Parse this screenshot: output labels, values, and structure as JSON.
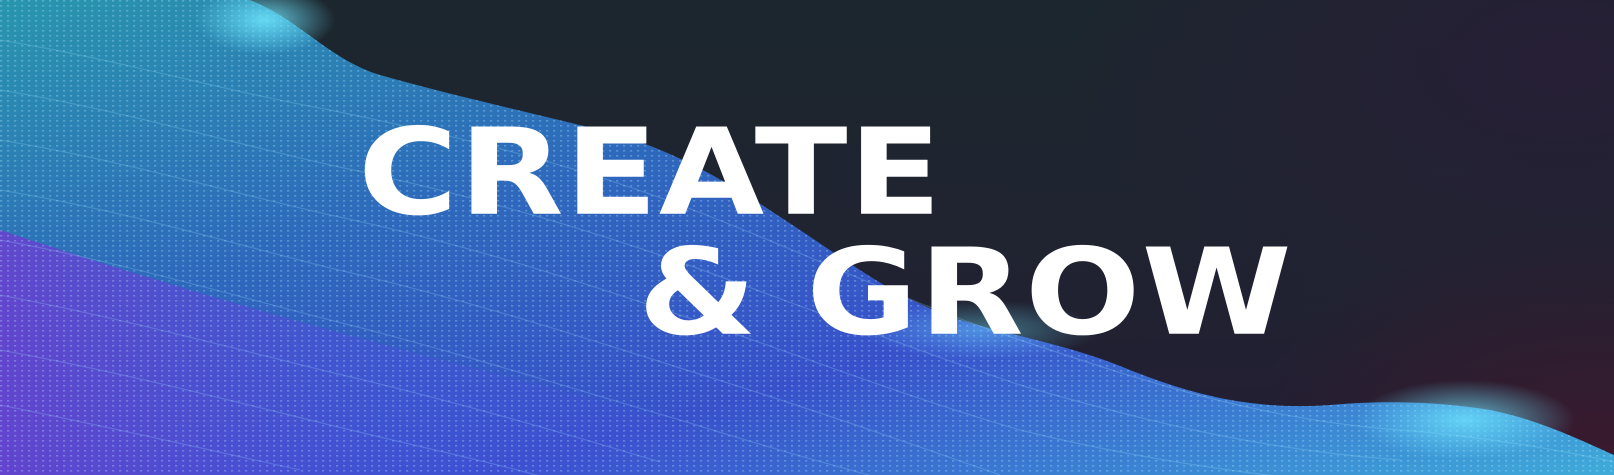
{
  "banner": {
    "headline_line_1": "CREATE",
    "headline_line_2": "& GROW"
  },
  "colors": {
    "background_dark": "#1d2330",
    "wave_cyan": "#3fd0e6",
    "wave_blue": "#3a6fe0",
    "wave_purple": "#6a3cc8",
    "text": "#ffffff"
  },
  "icons": {
    "background_graphic": "particle-wave-mesh"
  }
}
